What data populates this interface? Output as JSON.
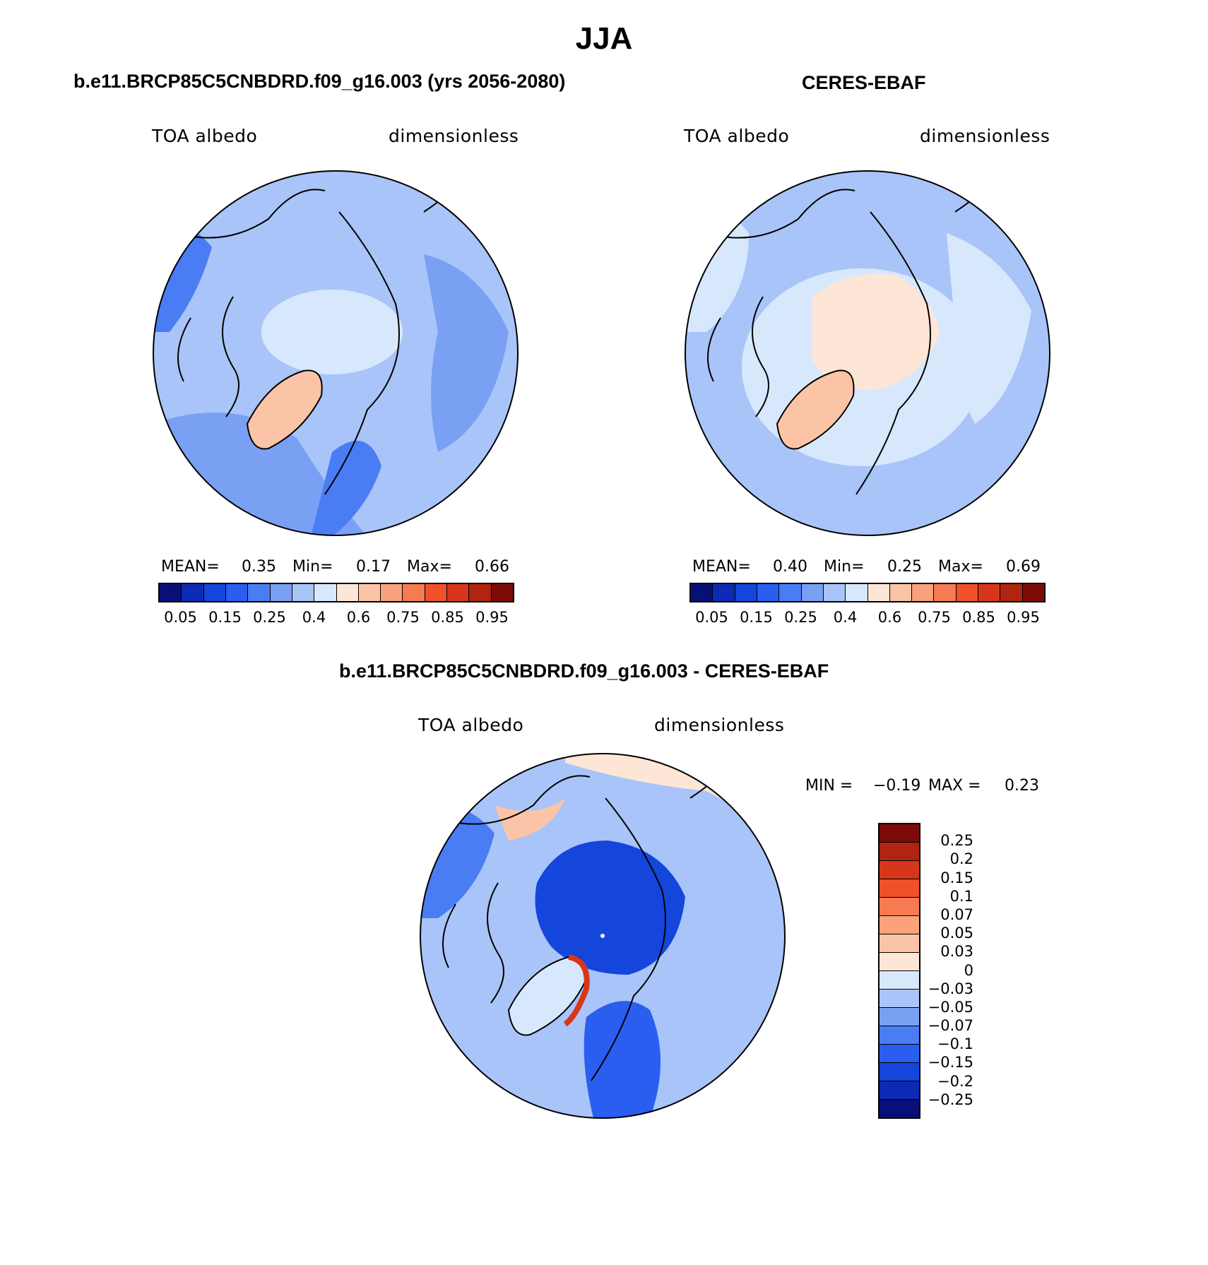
{
  "page_title": "JJA",
  "panels": [
    {
      "title": "b.e11.BRCP85C5CNBDRD.f09_g16.003 (yrs 2056-2080)",
      "left_label": "TOA albedo",
      "right_label": "dimensionless",
      "mean_label": "MEAN=",
      "mean_value": "0.35",
      "min_label": "Min=",
      "min_value": "0.17",
      "max_label": "Max=",
      "max_value": "0.66"
    },
    {
      "title": "CERES-EBAF",
      "left_label": "TOA albedo",
      "right_label": "dimensionless",
      "mean_label": "MEAN=",
      "mean_value": "0.40",
      "min_label": "Min=",
      "min_value": "0.25",
      "max_label": "Max=",
      "max_value": "0.69"
    },
    {
      "title": "b.e11.BRCP85C5CNBDRD.f09_g16.003 - CERES-EBAF",
      "left_label": "TOA albedo",
      "right_label": "dimensionless",
      "min_label": "MIN =",
      "min_value": "−0.19",
      "max_label": "MAX =",
      "max_value": "0.23"
    }
  ],
  "colorbar_abs": {
    "colors": [
      "#081078",
      "#0c2ab4",
      "#1446dc",
      "#2a5ef0",
      "#4a7cf4",
      "#7aa0f4",
      "#a9c4f8",
      "#d8e8fc",
      "#fde6d6",
      "#fcc4a6",
      "#faa27c",
      "#f67a52",
      "#f0502a",
      "#d8361a",
      "#b02410",
      "#7c0c08"
    ],
    "tick_labels": [
      "0.05",
      "0.15",
      "0.25",
      "0.4",
      "0.6",
      "0.75",
      "0.85",
      "0.95"
    ]
  },
  "colorbar_diff": {
    "colors": [
      "#081078",
      "#0c2ab4",
      "#1446dc",
      "#2a5ef0",
      "#4a7cf4",
      "#7aa0f4",
      "#a9c4f8",
      "#d8e8fc",
      "#fde6d6",
      "#fcc4a6",
      "#faa27c",
      "#f67a52",
      "#f0502a",
      "#d8361a",
      "#b02410",
      "#7c0c08"
    ],
    "tick_labels": [
      "0.25",
      "0.2",
      "0.15",
      "0.1",
      "0.07",
      "0.05",
      "0.03",
      "0",
      "−0.03",
      "−0.05",
      "−0.07",
      "−0.1",
      "−0.15",
      "−0.2",
      "−0.25"
    ]
  },
  "chart_data": [
    {
      "type": "heatmap",
      "projection": "north polar stereographic",
      "title": "b.e11.BRCP85C5CNBDRD.f09_g16.003 (yrs 2056-2080)",
      "variable": "TOA albedo",
      "units": "dimensionless",
      "season": "JJA",
      "mean": 0.35,
      "min": 0.17,
      "max": 0.66,
      "contour_levels": [
        0.05,
        0.1,
        0.15,
        0.2,
        0.25,
        0.3,
        0.35,
        0.4,
        0.5,
        0.6,
        0.7,
        0.75,
        0.8,
        0.85,
        0.9,
        0.95
      ]
    },
    {
      "type": "heatmap",
      "projection": "north polar stereographic",
      "title": "CERES-EBAF",
      "variable": "TOA albedo",
      "units": "dimensionless",
      "season": "JJA",
      "mean": 0.4,
      "min": 0.25,
      "max": 0.69,
      "contour_levels": [
        0.05,
        0.1,
        0.15,
        0.2,
        0.25,
        0.3,
        0.35,
        0.4,
        0.5,
        0.6,
        0.7,
        0.75,
        0.8,
        0.85,
        0.9,
        0.95
      ]
    },
    {
      "type": "heatmap",
      "projection": "north polar stereographic",
      "title": "b.e11.BRCP85C5CNBDRD.f09_g16.003 - CERES-EBAF",
      "variable": "TOA albedo",
      "units": "dimensionless",
      "season": "JJA",
      "min": -0.19,
      "max": 0.23,
      "contour_levels": [
        -0.25,
        -0.2,
        -0.15,
        -0.1,
        -0.07,
        -0.05,
        -0.03,
        0,
        0.03,
        0.05,
        0.07,
        0.1,
        0.15,
        0.2,
        0.25
      ]
    }
  ]
}
